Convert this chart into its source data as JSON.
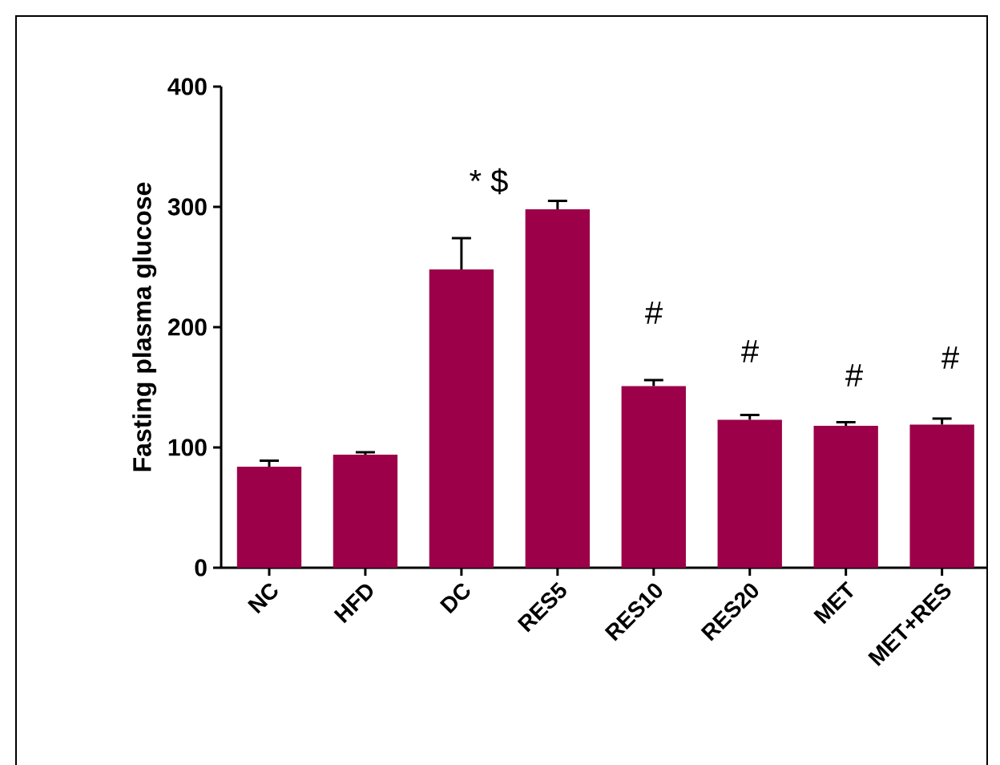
{
  "chart_data": {
    "type": "bar",
    "ylabel": "Fasting plasma glucose",
    "categories": [
      "NC",
      "HFD",
      "DC",
      "RES5",
      "RES10",
      "RES20",
      "MET",
      "MET+RES"
    ],
    "values": [
      84,
      94,
      248,
      298,
      151,
      123,
      118,
      119
    ],
    "errors": [
      5,
      2,
      26,
      7,
      5,
      4,
      3,
      5
    ],
    "color": "#9b0048",
    "ylim": [
      0,
      400
    ],
    "yticks": [
      0,
      100,
      200,
      300,
      400
    ],
    "annotations": [
      "* $",
      "#",
      "#",
      "#",
      "#"
    ]
  }
}
